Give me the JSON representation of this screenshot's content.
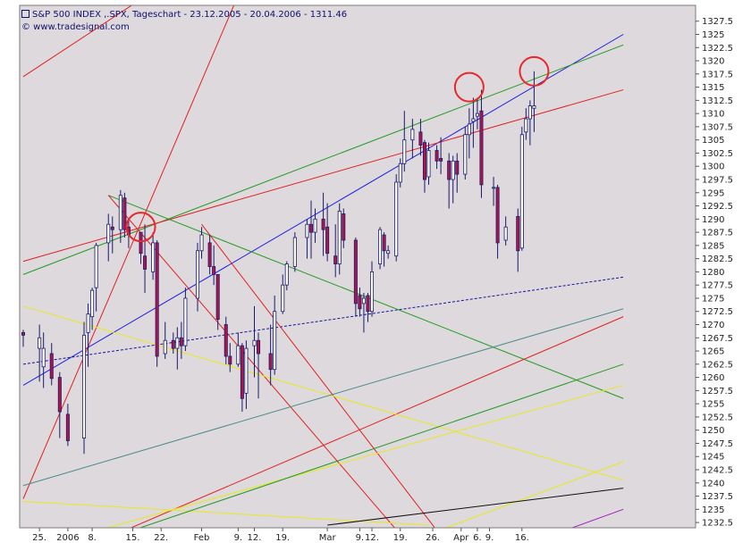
{
  "header": {
    "title": "S&P 500 INDEX ,.SPX, Tageschart - 23.12.2005 - 20.04.2006 - 1311.46",
    "source": "© www.tradesignal.com"
  },
  "colors": {
    "background": "#ddd9dc",
    "candle_up": "#ffffff",
    "candle_down": "#b0154a",
    "candle_outline": "#1a1a6b",
    "marker_circle": "#e8282c"
  },
  "chart_data": {
    "type": "candlestick",
    "title": "S&P 500 INDEX ,.SPX, Tageschart - 23.12.2005 - 20.04.2006 - 1311.46",
    "ylim": [
      1231.5,
      1330.5
    ],
    "yticks": [
      1232.5,
      1235,
      1237.5,
      1240,
      1242.5,
      1245,
      1247.5,
      1250,
      1252.5,
      1255,
      1257.5,
      1260,
      1262.5,
      1265,
      1267.5,
      1270,
      1272.5,
      1275,
      1277.5,
      1280,
      1282.5,
      1285,
      1287.5,
      1290,
      1292.5,
      1295,
      1297.5,
      1300,
      1302.5,
      1305,
      1307.5,
      1310,
      1312.5,
      1315,
      1317.5,
      1320,
      1322.5,
      1325,
      1327.5
    ],
    "xticks": [
      {
        "bar": 4,
        "label": "25."
      },
      {
        "bar": 11,
        "label": "2006"
      },
      {
        "bar": 17,
        "label": "8."
      },
      {
        "bar": 27,
        "label": "15."
      },
      {
        "bar": 34,
        "label": "22."
      },
      {
        "bar": 44,
        "label": "Feb"
      },
      {
        "bar": 53,
        "label": "9."
      },
      {
        "bar": 57,
        "label": "12."
      },
      {
        "bar": 64,
        "label": "19."
      },
      {
        "bar": 75,
        "label": "Mar"
      },
      {
        "bar": 83,
        "label": "9."
      },
      {
        "bar": 86,
        "label": "12."
      },
      {
        "bar": 93,
        "label": "19."
      },
      {
        "bar": 101,
        "label": "26."
      },
      {
        "bar": 108,
        "label": "Apr"
      },
      {
        "bar": 112,
        "label": "6."
      },
      {
        "bar": 115,
        "label": "9."
      },
      {
        "bar": 123,
        "label": "16."
      }
    ],
    "candles": [
      {
        "bar": 0,
        "o": 1268.5,
        "h": 1269.0,
        "l": 1265.8,
        "c": 1268.0
      },
      {
        "bar": 4,
        "o": 1265.5,
        "h": 1270.0,
        "l": 1259.2,
        "c": 1267.5
      },
      {
        "bar": 5,
        "o": 1262.0,
        "h": 1268.5,
        "l": 1258.0,
        "c": 1265.5
      },
      {
        "bar": 7,
        "o": 1264.5,
        "h": 1266.5,
        "l": 1258.5,
        "c": 1259.8
      },
      {
        "bar": 9,
        "o": 1260.0,
        "h": 1261.0,
        "l": 1248.5,
        "c": 1253.5
      },
      {
        "bar": 11,
        "o": 1253.0,
        "h": 1255.0,
        "l": 1247.0,
        "c": 1248.0
      },
      {
        "bar": 15,
        "o": 1248.5,
        "h": 1270.5,
        "l": 1245.5,
        "c": 1268.0
      },
      {
        "bar": 16,
        "o": 1268.5,
        "h": 1274.0,
        "l": 1262.0,
        "c": 1272.0
      },
      {
        "bar": 17,
        "o": 1271.5,
        "h": 1277.0,
        "l": 1269.0,
        "c": 1276.5
      },
      {
        "bar": 18,
        "o": 1277.0,
        "h": 1285.5,
        "l": 1272.5,
        "c": 1285.0
      },
      {
        "bar": 21,
        "o": 1285.5,
        "h": 1291.0,
        "l": 1282.0,
        "c": 1289.0
      },
      {
        "bar": 22,
        "o": 1288.5,
        "h": 1290.5,
        "l": 1283.5,
        "c": 1288.0
      },
      {
        "bar": 24,
        "o": 1288.0,
        "h": 1295.5,
        "l": 1285.5,
        "c": 1294.5
      },
      {
        "bar": 25,
        "o": 1294.0,
        "h": 1295.0,
        "l": 1286.5,
        "c": 1288.0
      },
      {
        "bar": 26,
        "o": 1288.5,
        "h": 1290.0,
        "l": 1284.5,
        "c": 1287.0
      },
      {
        "bar": 29,
        "o": 1287.5,
        "h": 1287.5,
        "l": 1281.5,
        "c": 1283.5
      },
      {
        "bar": 30,
        "o": 1283.0,
        "h": 1289.0,
        "l": 1276.0,
        "c": 1280.5
      },
      {
        "bar": 32,
        "o": 1280.0,
        "h": 1287.5,
        "l": 1278.5,
        "c": 1285.5
      },
      {
        "bar": 33,
        "o": 1285.5,
        "h": 1286.0,
        "l": 1262.0,
        "c": 1264.0
      },
      {
        "bar": 35,
        "o": 1264.5,
        "h": 1270.5,
        "l": 1263.5,
        "c": 1267.0
      },
      {
        "bar": 37,
        "o": 1267.0,
        "h": 1268.5,
        "l": 1264.5,
        "c": 1265.5
      },
      {
        "bar": 38,
        "o": 1265.5,
        "h": 1269.5,
        "l": 1261.5,
        "c": 1267.5
      },
      {
        "bar": 39,
        "o": 1267.5,
        "h": 1270.5,
        "l": 1263.5,
        "c": 1266.0
      },
      {
        "bar": 40,
        "o": 1266.0,
        "h": 1277.0,
        "l": 1265.0,
        "c": 1275.0
      },
      {
        "bar": 43,
        "o": 1275.0,
        "h": 1285.5,
        "l": 1272.5,
        "c": 1284.0
      },
      {
        "bar": 44,
        "o": 1284.0,
        "h": 1288.5,
        "l": 1282.5,
        "c": 1287.0
      },
      {
        "bar": 46,
        "o": 1285.5,
        "h": 1287.0,
        "l": 1279.5,
        "c": 1281.0
      },
      {
        "bar": 47,
        "o": 1281.0,
        "h": 1285.0,
        "l": 1277.5,
        "c": 1279.5
      },
      {
        "bar": 48,
        "o": 1279.5,
        "h": 1279.5,
        "l": 1269.0,
        "c": 1271.0
      },
      {
        "bar": 50,
        "o": 1270.0,
        "h": 1271.5,
        "l": 1262.5,
        "c": 1264.0
      },
      {
        "bar": 51,
        "o": 1264.0,
        "h": 1266.5,
        "l": 1261.0,
        "c": 1262.5
      },
      {
        "bar": 53,
        "o": 1262.5,
        "h": 1268.5,
        "l": 1262.0,
        "c": 1266.0
      },
      {
        "bar": 54,
        "o": 1266.0,
        "h": 1266.5,
        "l": 1253.5,
        "c": 1256.0
      },
      {
        "bar": 55,
        "o": 1257.0,
        "h": 1267.0,
        "l": 1254.0,
        "c": 1265.5
      },
      {
        "bar": 57,
        "o": 1266.0,
        "h": 1273.5,
        "l": 1260.0,
        "c": 1267.0
      },
      {
        "bar": 58,
        "o": 1267.0,
        "h": 1268.5,
        "l": 1256.0,
        "c": 1264.5
      },
      {
        "bar": 61,
        "o": 1264.5,
        "h": 1270.0,
        "l": 1258.5,
        "c": 1261.5
      },
      {
        "bar": 62,
        "o": 1261.5,
        "h": 1275.5,
        "l": 1260.5,
        "c": 1272.5
      },
      {
        "bar": 64,
        "o": 1272.5,
        "h": 1279.5,
        "l": 1272.0,
        "c": 1277.5
      },
      {
        "bar": 65,
        "o": 1277.5,
        "h": 1282.0,
        "l": 1276.5,
        "c": 1281.5
      },
      {
        "bar": 67,
        "o": 1281.0,
        "h": 1287.5,
        "l": 1280.0,
        "c": 1286.5
      },
      {
        "bar": 70,
        "o": 1286.5,
        "h": 1290.0,
        "l": 1282.5,
        "c": 1289.0
      },
      {
        "bar": 71,
        "o": 1289.0,
        "h": 1293.5,
        "l": 1282.5,
        "c": 1287.5
      },
      {
        "bar": 72,
        "o": 1287.5,
        "h": 1292.0,
        "l": 1285.5,
        "c": 1290.0
      },
      {
        "bar": 74,
        "o": 1290.0,
        "h": 1295.0,
        "l": 1283.0,
        "c": 1288.0
      },
      {
        "bar": 75,
        "o": 1288.5,
        "h": 1293.0,
        "l": 1282.0,
        "c": 1283.5
      },
      {
        "bar": 77,
        "o": 1283.0,
        "h": 1289.0,
        "l": 1279.0,
        "c": 1281.5
      },
      {
        "bar": 78,
        "o": 1281.5,
        "h": 1293.0,
        "l": 1279.5,
        "c": 1291.5
      },
      {
        "bar": 79,
        "o": 1291.0,
        "h": 1292.0,
        "l": 1284.5,
        "c": 1286.0
      },
      {
        "bar": 82,
        "o": 1286.0,
        "h": 1286.5,
        "l": 1271.5,
        "c": 1274.0
      },
      {
        "bar": 83,
        "o": 1275.5,
        "h": 1277.0,
        "l": 1271.5,
        "c": 1273.0
      },
      {
        "bar": 84,
        "o": 1274.0,
        "h": 1276.0,
        "l": 1268.5,
        "c": 1275.0
      },
      {
        "bar": 85,
        "o": 1275.5,
        "h": 1276.0,
        "l": 1270.5,
        "c": 1272.5
      },
      {
        "bar": 86,
        "o": 1272.5,
        "h": 1282.0,
        "l": 1271.5,
        "c": 1280.0
      },
      {
        "bar": 88,
        "o": 1281.5,
        "h": 1288.5,
        "l": 1280.5,
        "c": 1288.0
      },
      {
        "bar": 89,
        "o": 1287.0,
        "h": 1287.5,
        "l": 1281.0,
        "c": 1284.0
      },
      {
        "bar": 90,
        "o": 1283.5,
        "h": 1285.0,
        "l": 1282.5,
        "c": 1284.0
      },
      {
        "bar": 92,
        "o": 1283.0,
        "h": 1298.5,
        "l": 1282.0,
        "c": 1297.0
      },
      {
        "bar": 93,
        "o": 1297.0,
        "h": 1301.5,
        "l": 1296.0,
        "c": 1300.5
      },
      {
        "bar": 94,
        "o": 1300.5,
        "h": 1310.5,
        "l": 1299.0,
        "c": 1305.0
      },
      {
        "bar": 96,
        "o": 1305.0,
        "h": 1309.0,
        "l": 1301.5,
        "c": 1307.0
      },
      {
        "bar": 98,
        "o": 1306.5,
        "h": 1309.0,
        "l": 1302.0,
        "c": 1304.0
      },
      {
        "bar": 99,
        "o": 1304.5,
        "h": 1305.0,
        "l": 1295.0,
        "c": 1297.5
      },
      {
        "bar": 100,
        "o": 1298.0,
        "h": 1304.5,
        "l": 1296.5,
        "c": 1303.0
      },
      {
        "bar": 102,
        "o": 1303.0,
        "h": 1304.0,
        "l": 1299.5,
        "c": 1301.0
      },
      {
        "bar": 103,
        "o": 1301.5,
        "h": 1305.5,
        "l": 1298.5,
        "c": 1301.0
      },
      {
        "bar": 105,
        "o": 1301.0,
        "h": 1302.5,
        "l": 1292.0,
        "c": 1297.5
      },
      {
        "bar": 106,
        "o": 1297.5,
        "h": 1302.0,
        "l": 1293.0,
        "c": 1301.0
      },
      {
        "bar": 107,
        "o": 1301.0,
        "h": 1302.5,
        "l": 1295.0,
        "c": 1298.5
      },
      {
        "bar": 109,
        "o": 1298.5,
        "h": 1307.5,
        "l": 1297.5,
        "c": 1306.0
      },
      {
        "bar": 110,
        "o": 1306.0,
        "h": 1311.0,
        "l": 1301.5,
        "c": 1308.0
      },
      {
        "bar": 111,
        "o": 1308.5,
        "h": 1313.0,
        "l": 1303.5,
        "c": 1309.0
      },
      {
        "bar": 112,
        "o": 1309.5,
        "h": 1313.0,
        "l": 1307.0,
        "c": 1310.0
      },
      {
        "bar": 113,
        "o": 1310.5,
        "h": 1314.5,
        "l": 1294.0,
        "c": 1296.5
      },
      {
        "bar": 116,
        "o": 1296.0,
        "h": 1298.0,
        "l": 1292.5,
        "c": 1296.0
      },
      {
        "bar": 117,
        "o": 1296.0,
        "h": 1296.5,
        "l": 1282.5,
        "c": 1285.5
      },
      {
        "bar": 119,
        "o": 1286.0,
        "h": 1290.5,
        "l": 1285.0,
        "c": 1288.5
      },
      {
        "bar": 122,
        "o": 1290.5,
        "h": 1292.0,
        "l": 1280.0,
        "c": 1284.0
      },
      {
        "bar": 123,
        "o": 1284.5,
        "h": 1307.5,
        "l": 1284.0,
        "c": 1306.0
      },
      {
        "bar": 124,
        "o": 1306.5,
        "h": 1311.0,
        "l": 1305.0,
        "c": 1309.0
      },
      {
        "bar": 125,
        "o": 1309.0,
        "h": 1312.5,
        "l": 1304.0,
        "c": 1311.46
      },
      {
        "bar": 126,
        "o": 1311.0,
        "h": 1318.0,
        "l": 1306.5,
        "c": 1311.46
      }
    ],
    "trendlines": [
      {
        "color": "#2020e0",
        "dash": false,
        "from": [
          0,
          1258.5
        ],
        "to": [
          148,
          1325.0
        ]
      },
      {
        "color": "#1515a0",
        "dash": true,
        "from": [
          0,
          1262.5
        ],
        "to": [
          148,
          1279.0
        ]
      },
      {
        "color": "#239a23",
        "dash": false,
        "from": [
          0,
          1279.5
        ],
        "to": [
          148,
          1323.0
        ]
      },
      {
        "color": "#e02020",
        "dash": false,
        "from": [
          0,
          1282.0
        ],
        "to": [
          148,
          1314.5
        ]
      },
      {
        "color": "#239a23",
        "dash": false,
        "from": [
          21,
          1294.5
        ],
        "to": [
          148,
          1256.0
        ]
      },
      {
        "color": "#e02020",
        "dash": false,
        "from": [
          0,
          1317.0
        ],
        "to": [
          101,
          1368.0
        ]
      },
      {
        "color": "#e02020",
        "dash": false,
        "from": [
          0,
          1237.0
        ],
        "to": [
          60,
          1345.0
        ]
      },
      {
        "color": "#e02020",
        "dash": false,
        "from": [
          21,
          1294.5
        ],
        "to": [
          100,
          1224.0
        ]
      },
      {
        "color": "#e02020",
        "dash": false,
        "from": [
          44,
          1289.0
        ],
        "to": [
          110,
          1223.0
        ]
      },
      {
        "color": "#e02020",
        "dash": false,
        "from": [
          19,
          1229.0
        ],
        "to": [
          148,
          1271.5
        ]
      },
      {
        "color": "#e8e820",
        "dash": false,
        "from": [
          0,
          1273.5
        ],
        "to": [
          148,
          1240.5
        ]
      },
      {
        "color": "#e8e820",
        "dash": false,
        "from": [
          0,
          1236.5
        ],
        "to": [
          100,
          1232.0
        ]
      },
      {
        "color": "#e8e820",
        "dash": false,
        "from": [
          16,
          1230.5
        ],
        "to": [
          148,
          1258.5
        ]
      },
      {
        "color": "#e8e820",
        "dash": false,
        "from": [
          92,
          1228.0
        ],
        "to": [
          148,
          1244.0
        ]
      },
      {
        "color": "#239a23",
        "dash": false,
        "from": [
          25,
          1230.5
        ],
        "to": [
          148,
          1262.5
        ]
      },
      {
        "color": "#4a8a8a",
        "dash": false,
        "from": [
          0,
          1239.5
        ],
        "to": [
          148,
          1273.0
        ]
      },
      {
        "color": "#101010",
        "dash": false,
        "from": [
          75,
          1232.0
        ],
        "to": [
          148,
          1239.0
        ]
      },
      {
        "color": "#a020c0",
        "dash": false,
        "from": [
          130,
          1230.0
        ],
        "to": [
          148,
          1235.0
        ]
      }
    ],
    "markers": [
      {
        "bar": 29,
        "y": 1288.5
      },
      {
        "bar": 110,
        "y": 1315.0
      },
      {
        "bar": 126,
        "y": 1318.0
      }
    ]
  }
}
